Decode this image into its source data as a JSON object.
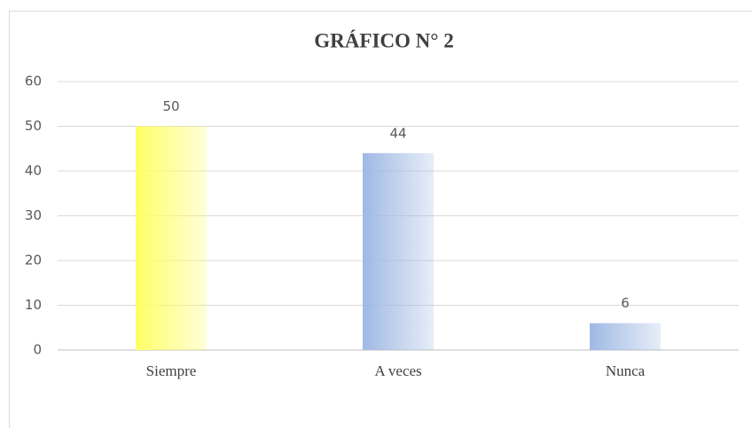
{
  "chart_data": {
    "type": "bar",
    "title": "GRÁFICO N° 2",
    "categories": [
      "Siempre",
      "A veces",
      "Nunca"
    ],
    "values": [
      50,
      44,
      6
    ],
    "colors": [
      "#ffff66",
      "#9fb9e4",
      "#9fb9e4"
    ],
    "ylim": [
      0,
      60
    ],
    "yticks": [
      0,
      10,
      20,
      30,
      40,
      50,
      60
    ],
    "grid": true
  }
}
